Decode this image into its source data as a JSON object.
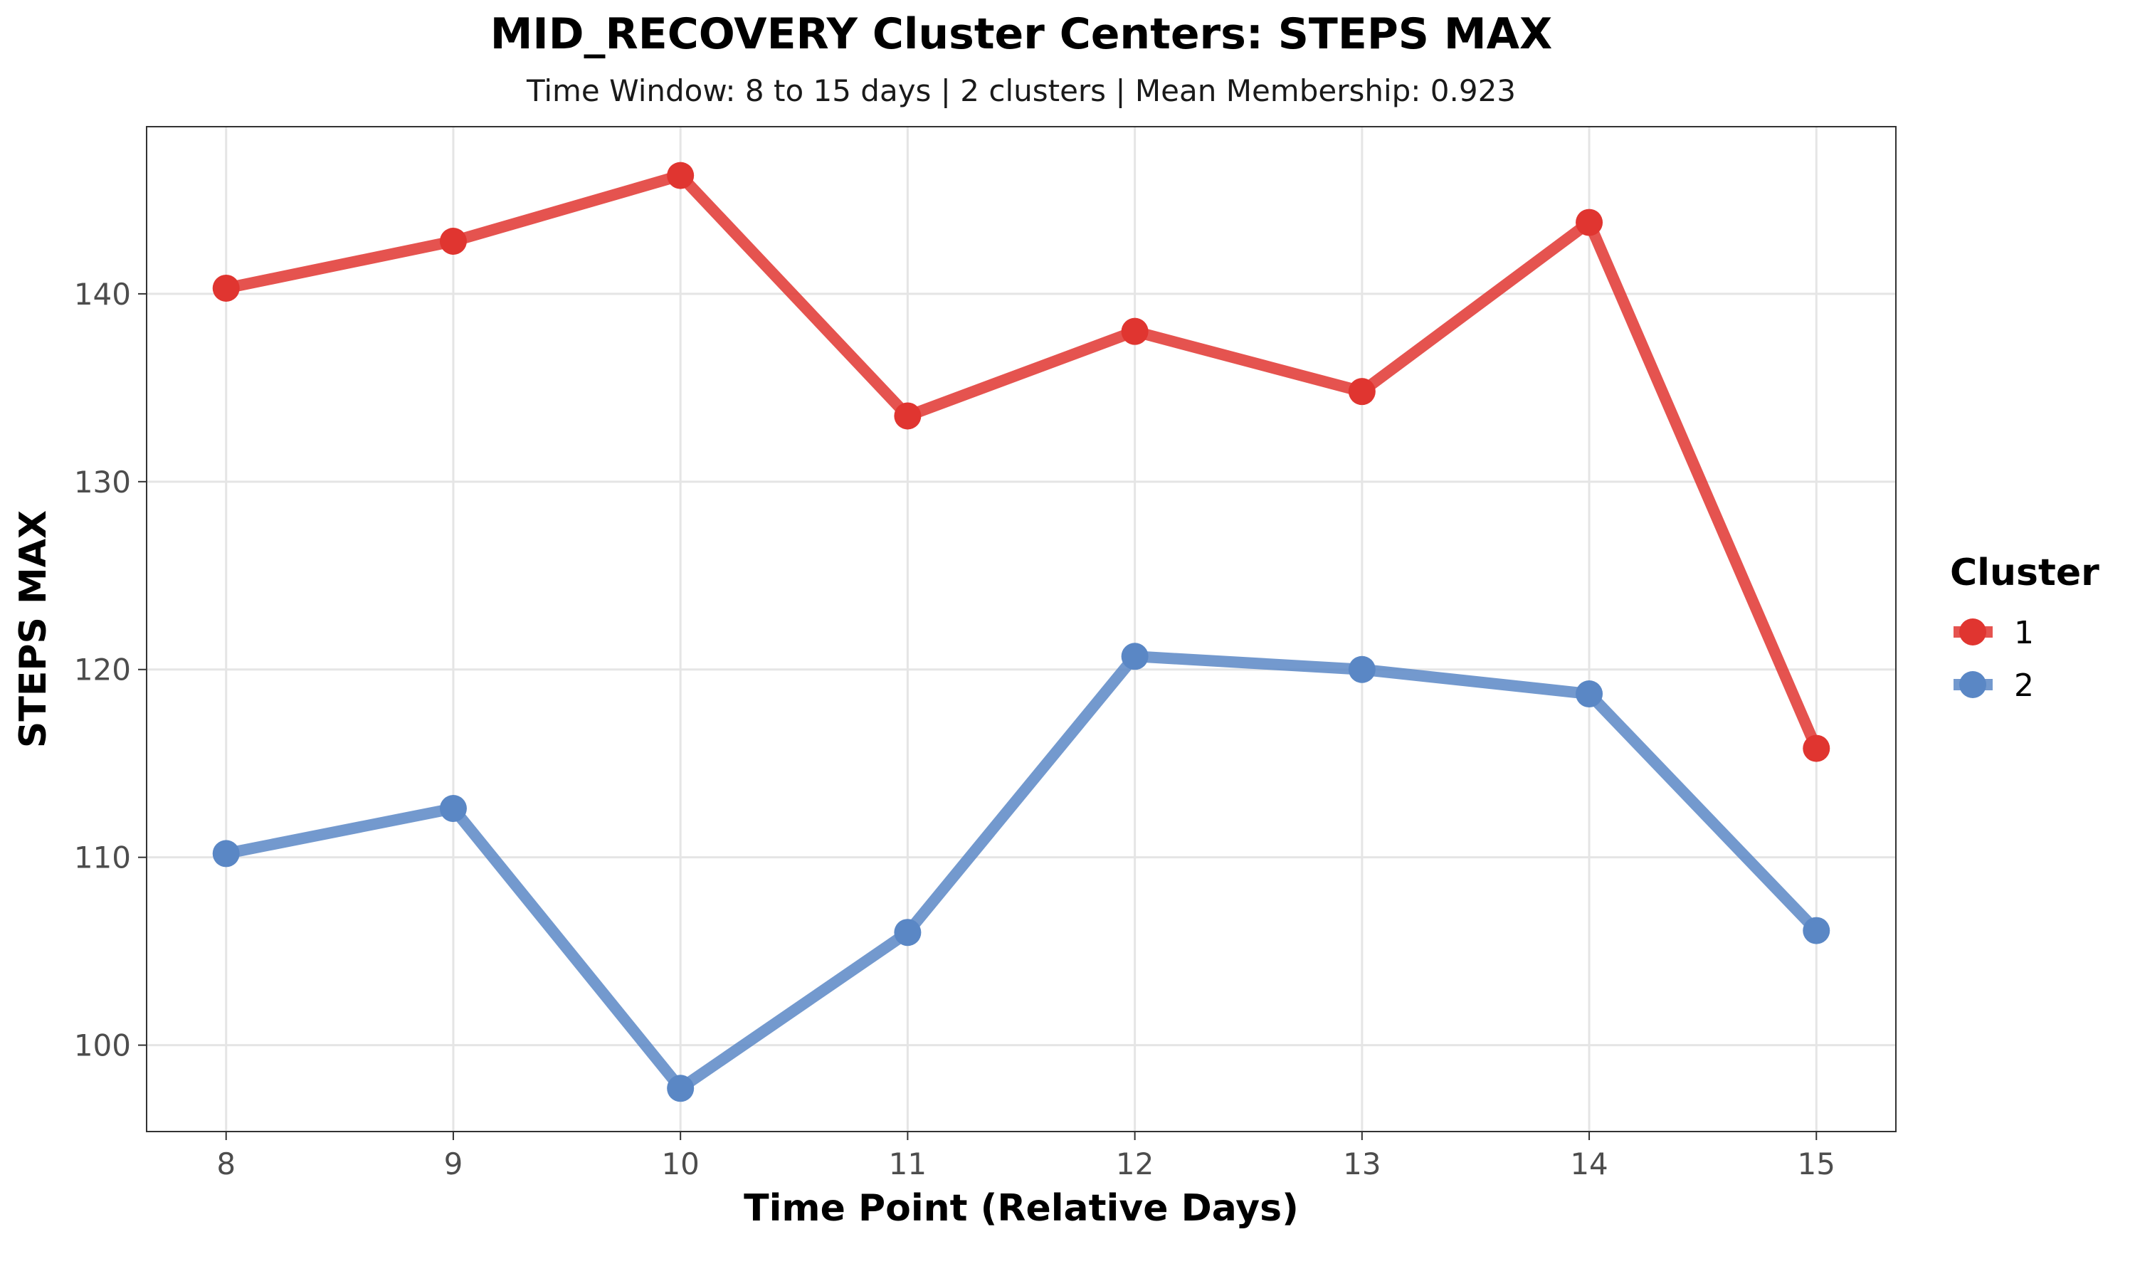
{
  "chart_data": {
    "type": "line",
    "title": "MID_RECOVERY Cluster Centers: STEPS MAX",
    "subtitle": "Time Window: 8 to 15 days | 2 clusters | Mean Membership: 0.923",
    "xlabel": "Time Point (Relative Days)",
    "ylabel": "STEPS MAX",
    "x": [
      8,
      9,
      10,
      11,
      12,
      13,
      14,
      15
    ],
    "xlim": [
      7.65,
      15.35
    ],
    "ylim": [
      95.4,
      148.9
    ],
    "xticks": [
      8,
      9,
      10,
      11,
      12,
      13,
      14,
      15
    ],
    "yticks": [
      100,
      110,
      120,
      130,
      140
    ],
    "grid": true,
    "legend": {
      "title": "Cluster",
      "position": "right"
    },
    "series": [
      {
        "name": "1",
        "color": "#e03530",
        "values": [
          140.3,
          142.8,
          146.3,
          133.5,
          138.0,
          134.8,
          143.8,
          115.8
        ]
      },
      {
        "name": "2",
        "color": "#5a87c5",
        "values": [
          110.2,
          112.6,
          97.7,
          106.0,
          120.7,
          120.0,
          118.7,
          106.1
        ]
      }
    ]
  }
}
